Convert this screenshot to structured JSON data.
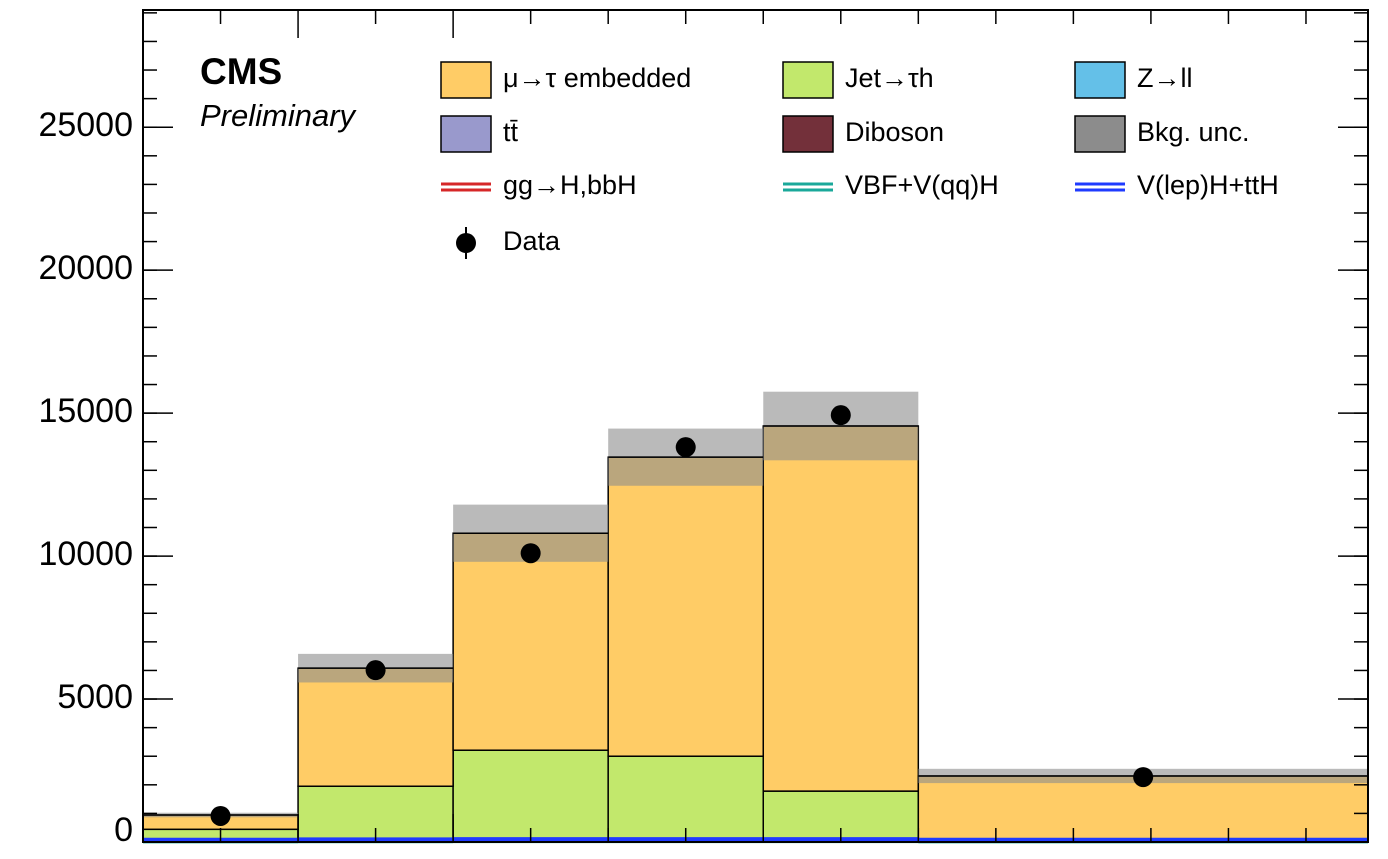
{
  "chart_data": {
    "type": "stacked_histogram",
    "experiment": "CMS",
    "status": "Preliminary",
    "categories": [
      null,
      null,
      null,
      null,
      null,
      null
    ],
    "series": [
      {
        "name": "μ→τ embedded",
        "color": "#ffcc66",
        "values": [
          500,
          4130,
          7590,
          10460,
          12770,
          2230
        ]
      },
      {
        "name": "Jet→τh",
        "color": "#c2e86c",
        "values": [
          400,
          1900,
          3160,
          2950,
          1730,
          40
        ]
      },
      {
        "name": "Z→ll",
        "color": "#64c0e8",
        "values": [
          20,
          20,
          20,
          20,
          20,
          20
        ]
      },
      {
        "name": "tt̄",
        "color": "#9999cc",
        "values": [
          15,
          20,
          20,
          20,
          20,
          15
        ]
      },
      {
        "name": "Diboson",
        "color": "#73303a",
        "values": [
          9,
          10,
          10,
          10,
          10,
          5
        ]
      }
    ],
    "uncertainty": {
      "name": "Bkg. unc.",
      "color": "#8c8c8c",
      "values": [
        80,
        500,
        1000,
        1000,
        1200,
        250
      ]
    },
    "signals": [
      {
        "name": "gg→H,bbH",
        "color": "#d62728",
        "values": [
          40,
          50,
          60,
          60,
          60,
          40
        ]
      },
      {
        "name": "VBF+V(qq)H",
        "color": "#1aa89a",
        "values": [
          20,
          25,
          30,
          30,
          30,
          20
        ]
      },
      {
        "name": "V(lep)H+ttH",
        "color": "#1f3bff",
        "values": [
          80,
          90,
          100,
          100,
          100,
          80
        ]
      }
    ],
    "data": {
      "name": "Data",
      "color": "#000000",
      "values": [
        910,
        6010,
        10100,
        13810,
        14930,
        2270
      ]
    },
    "ylim": [
      0,
      29100
    ],
    "yticks": [
      0,
      5000,
      10000,
      15000,
      20000,
      25000
    ]
  }
}
